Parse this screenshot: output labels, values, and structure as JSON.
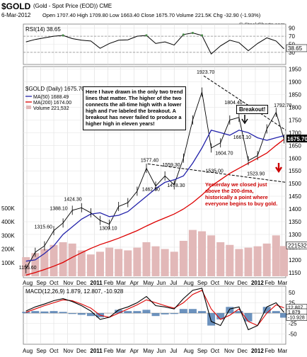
{
  "header": {
    "symbol": "$GOLD",
    "name": "(Gold - Spot Price (EOD)) CME",
    "date": "6-Mar-2012",
    "quote": "Open 1707.40  High 1709.80  Low 1663.40  Close 1675.70  Volume 221.5K  Chg -32.90 (-1.93%)",
    "brand": "© StockCharts.com"
  },
  "colors": {
    "price": "#000000",
    "ma50": "#2222aa",
    "ma200": "#dd0000",
    "volume": "#e2b8b8",
    "macd": "#000000",
    "signal": "#dd0000",
    "histogram": "#3b6ea8",
    "rsi": "#000000",
    "rsi_fill": "#4a8a4a",
    "annotation": "#cc0000"
  },
  "chart_data": [
    {
      "type": "line",
      "panel": "rsi",
      "title": "RSI(14) 38.65",
      "ylim": [
        0,
        100
      ],
      "yticks": [
        30,
        50,
        70,
        90
      ],
      "reference_lines": [
        30,
        70
      ],
      "last_label": "38.65",
      "x": [
        "2010-07-30",
        "2010-08-20",
        "2010-09-10",
        "2010-10-01",
        "2010-10-22",
        "2010-11-12",
        "2010-12-03",
        "2010-12-24",
        "2011-01-14",
        "2011-02-04",
        "2011-02-25",
        "2011-03-18",
        "2011-04-08",
        "2011-04-29",
        "2011-05-20",
        "2011-06-10",
        "2011-07-01",
        "2011-07-22",
        "2011-08-12",
        "2011-09-02",
        "2011-09-23",
        "2011-10-14",
        "2011-11-04",
        "2011-11-25",
        "2011-12-16",
        "2012-01-06",
        "2012-01-27",
        "2012-02-17",
        "2012-03-06"
      ],
      "values": [
        56,
        62,
        66,
        70,
        72,
        64,
        60,
        58,
        40,
        52,
        60,
        61,
        70,
        72,
        52,
        56,
        48,
        74,
        78,
        72,
        26,
        46,
        60,
        54,
        34,
        52,
        66,
        58,
        38.65
      ]
    },
    {
      "type": "line",
      "panel": "price",
      "title": "$GOLD (Daily) 1675.70",
      "legend": [
        "MA(50) 1688.49",
        "MA(200) 1674.00",
        "Volume 221,532"
      ],
      "ylim": [
        1130,
        1960
      ],
      "yticks": [
        1150,
        1200,
        1250,
        1300,
        1350,
        1400,
        1450,
        1500,
        1550,
        1600,
        1650,
        1700,
        1750,
        1800,
        1850,
        1900,
        1950
      ],
      "last_label": "1675.70",
      "x": [
        "2010-07-30",
        "2010-08-20",
        "2010-09-10",
        "2010-10-01",
        "2010-10-22",
        "2010-11-12",
        "2010-12-03",
        "2010-12-24",
        "2011-01-14",
        "2011-02-04",
        "2011-02-25",
        "2011-03-18",
        "2011-04-08",
        "2011-04-29",
        "2011-05-20",
        "2011-06-10",
        "2011-07-01",
        "2011-07-22",
        "2011-08-12",
        "2011-09-02",
        "2011-09-23",
        "2011-10-14",
        "2011-11-04",
        "2011-11-25",
        "2011-12-16",
        "2012-01-06",
        "2012-01-27",
        "2012-02-17",
        "2012-03-06"
      ],
      "series": [
        {
          "key": "price",
          "values": [
            1165,
            1230,
            1255,
            1315,
            1345,
            1395,
            1405,
            1385,
            1355,
            1340,
            1410,
            1425,
            1470,
            1560,
            1490,
            1530,
            1495,
            1600,
            1750,
            1860,
            1640,
            1660,
            1750,
            1760,
            1590,
            1610,
            1715,
            1780,
            1675.7
          ]
        },
        {
          "key": "ma50",
          "values": [
            1195,
            1200,
            1225,
            1255,
            1300,
            1330,
            1360,
            1380,
            1385,
            1370,
            1375,
            1390,
            1420,
            1450,
            1480,
            1505,
            1515,
            1530,
            1580,
            1640,
            1710,
            1700,
            1690,
            1710,
            1700,
            1680,
            1670,
            1680,
            1688.49
          ]
        },
        {
          "key": "ma200",
          "values": [
            1140,
            1150,
            1162,
            1175,
            1190,
            1210,
            1228,
            1245,
            1260,
            1272,
            1285,
            1300,
            1315,
            1333,
            1350,
            1365,
            1380,
            1400,
            1425,
            1455,
            1490,
            1515,
            1540,
            1560,
            1580,
            1600,
            1620,
            1650,
            1674
          ]
        }
      ],
      "annotations": [
        {
          "text": "1155.60",
          "x": "2010-07-30",
          "y": 1155.6
        },
        {
          "text": "1315.60",
          "x": "2010-09-03",
          "y": 1315.6
        },
        {
          "text": "1388.10",
          "x": "2010-10-08",
          "y": 1388.1
        },
        {
          "text": "1424.30",
          "x": "2010-11-09",
          "y": 1424.3
        },
        {
          "text": "1309.10",
          "x": "2011-01-28",
          "y": 1309.1
        },
        {
          "text": "1462.50",
          "x": "2011-05-05",
          "y": 1462.5
        },
        {
          "text": "1577.40",
          "x": "2011-05-02",
          "y": 1577.4
        },
        {
          "text": "1559.30",
          "x": "2011-06-20",
          "y": 1559.3
        },
        {
          "text": "1478.30",
          "x": "2011-07-01",
          "y": 1478.3
        },
        {
          "text": "1923.70",
          "x": "2011-09-06",
          "y": 1923.7
        },
        {
          "text": "1535.00",
          "x": "2011-09-26",
          "y": 1535.0
        },
        {
          "text": "1604.70",
          "x": "2011-10-18",
          "y": 1604.7
        },
        {
          "text": "1804.40",
          "x": "2011-11-08",
          "y": 1804.4
        },
        {
          "text": "1667.10",
          "x": "2011-11-28",
          "y": 1667.1
        },
        {
          "text": "1523.90",
          "x": "2011-12-29",
          "y": 1523.9
        },
        {
          "text": "1792.70",
          "x": "2012-02-28",
          "y": 1792.7
        }
      ],
      "callouts": [
        "Here I have drawn in the only two trend lines that matter. The higher of the two connects the all-time high with a lower high and I've labeled the breakout. A breakout has never failed to produce a higher high in eleven years!",
        "Breakout!",
        "Yesterday we closed just above the 200-dma, historically a point where everyone begins to buy gold."
      ]
    },
    {
      "type": "bar",
      "panel": "volume",
      "ylabels": [
        "500K",
        "400K",
        "300K",
        "200K",
        "100K"
      ],
      "last_label": "221532",
      "x": [
        "2010-07-30",
        "2010-08-20",
        "2010-09-10",
        "2010-10-01",
        "2010-10-22",
        "2010-11-12",
        "2010-12-03",
        "2010-12-24",
        "2011-01-14",
        "2011-02-04",
        "2011-02-25",
        "2011-03-18",
        "2011-04-08",
        "2011-04-29",
        "2011-05-20",
        "2011-06-10",
        "2011-07-01",
        "2011-07-22",
        "2011-08-12",
        "2011-09-02",
        "2011-09-23",
        "2011-10-14",
        "2011-11-04",
        "2011-11-25",
        "2011-12-16",
        "2012-01-06",
        "2012-01-27",
        "2012-02-17",
        "2012-03-06"
      ],
      "values": [
        140000,
        170000,
        200000,
        230000,
        250000,
        240000,
        190000,
        160000,
        180000,
        210000,
        200000,
        190000,
        210000,
        250000,
        220000,
        200000,
        180000,
        260000,
        340000,
        330000,
        300000,
        250000,
        230000,
        200000,
        210000,
        220000,
        240000,
        300000,
        221532
      ]
    },
    {
      "type": "line",
      "panel": "macd",
      "title": "MACD(12,26,9) 1.879, 12.807, -10.928",
      "ylim": [
        -75,
        65
      ],
      "yticks": [
        -50,
        -25,
        0,
        25,
        50
      ],
      "x": [
        "2010-07-30",
        "2010-08-20",
        "2010-09-10",
        "2010-10-01",
        "2010-10-22",
        "2010-11-12",
        "2010-12-03",
        "2010-12-24",
        "2011-01-14",
        "2011-02-04",
        "2011-02-25",
        "2011-03-18",
        "2011-04-08",
        "2011-04-29",
        "2011-05-20",
        "2011-06-10",
        "2011-07-01",
        "2011-07-22",
        "2011-08-12",
        "2011-09-02",
        "2011-09-23",
        "2011-10-14",
        "2011-11-04",
        "2011-11-25",
        "2011-12-16",
        "2012-01-06",
        "2012-01-27",
        "2012-02-17",
        "2012-03-06"
      ],
      "series": [
        {
          "key": "macd",
          "values": [
            5,
            15,
            22,
            30,
            35,
            28,
            18,
            5,
            -15,
            -10,
            8,
            15,
            25,
            40,
            18,
            15,
            10,
            35,
            55,
            60,
            -20,
            -30,
            10,
            15,
            -40,
            -30,
            15,
            25,
            1.879
          ]
        },
        {
          "key": "signal",
          "values": [
            2,
            10,
            18,
            25,
            32,
            30,
            22,
            12,
            -5,
            -10,
            0,
            10,
            20,
            32,
            25,
            18,
            12,
            25,
            45,
            55,
            10,
            -15,
            -5,
            10,
            -20,
            -30,
            0,
            20,
            12.807
          ]
        },
        {
          "key": "histogram",
          "values": [
            3,
            5,
            4,
            5,
            3,
            -2,
            -4,
            -7,
            -10,
            0,
            8,
            5,
            5,
            8,
            -7,
            -3,
            -2,
            10,
            10,
            5,
            -30,
            -15,
            15,
            5,
            -20,
            0,
            15,
            5,
            -10.928
          ]
        }
      ],
      "last_labels": [
        "12.807",
        "1.879",
        "-10.928"
      ]
    }
  ],
  "x_axis": {
    "months": [
      {
        "label": "Aug",
        "date": "2010-08-01"
      },
      {
        "label": "Sep",
        "date": "2010-09-01"
      },
      {
        "label": "Oct",
        "date": "2010-10-01"
      },
      {
        "label": "Nov",
        "date": "2010-11-01"
      },
      {
        "label": "Dec",
        "date": "2010-12-01"
      },
      {
        "label": "2011",
        "date": "2011-01-01"
      },
      {
        "label": "Feb",
        "date": "2011-02-01"
      },
      {
        "label": "Mar",
        "date": "2011-03-01"
      },
      {
        "label": "Apr",
        "date": "2011-04-01"
      },
      {
        "label": "May",
        "date": "2011-05-01"
      },
      {
        "label": "Jun",
        "date": "2011-06-01"
      },
      {
        "label": "Jul",
        "date": "2011-07-01"
      },
      {
        "label": "Aug",
        "date": "2011-08-01"
      },
      {
        "label": "Sep",
        "date": "2011-09-01"
      },
      {
        "label": "Oct",
        "date": "2011-10-01"
      },
      {
        "label": "Nov",
        "date": "2011-11-01"
      },
      {
        "label": "Dec",
        "date": "2011-12-01"
      },
      {
        "label": "2012",
        "date": "2012-01-01"
      },
      {
        "label": "Feb",
        "date": "2012-02-01"
      },
      {
        "label": "Mar",
        "date": "2012-03-01"
      }
    ]
  }
}
